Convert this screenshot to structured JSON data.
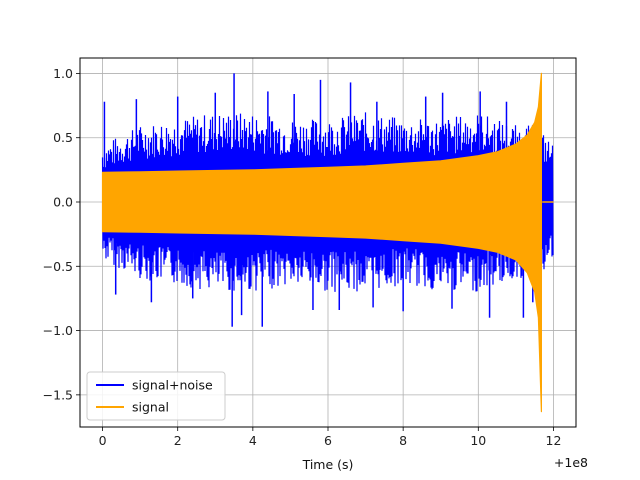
{
  "chart_data": {
    "type": "line",
    "title": "",
    "xlabel": "Time (s)",
    "ylabel": "",
    "x_offset_label": "+1e8",
    "x_ticks": [
      0,
      2,
      4,
      6,
      8,
      10,
      12
    ],
    "x_tick_labels": [
      "0",
      "2",
      "4",
      "6",
      "8",
      "10",
      "12"
    ],
    "y_ticks": [
      -1.5,
      -1.0,
      -0.5,
      0.0,
      0.5,
      1.0
    ],
    "y_tick_labels": [
      "−1.5",
      "−1.0",
      "−0.5",
      "0.0",
      "0.5",
      "1.0"
    ],
    "xlim": [
      -0.6,
      12.6
    ],
    "ylim": [
      -1.75,
      1.12
    ],
    "grid": true,
    "legend_position": "lower-left",
    "series": [
      {
        "name": "signal+noise",
        "color": "#0000ff",
        "x_range": [
          0,
          12.0
        ],
        "envelope": {
          "x": [
            0,
            1,
            2,
            3,
            4,
            5,
            6,
            7,
            8,
            9,
            10,
            11,
            11.5,
            11.7,
            12.0
          ],
          "upper": [
            0.45,
            0.6,
            0.65,
            0.7,
            0.7,
            0.65,
            0.65,
            0.7,
            0.65,
            0.65,
            0.7,
            0.6,
            0.6,
            0.55,
            0.45
          ],
          "lower": [
            -0.45,
            -0.6,
            -0.65,
            -0.7,
            -0.7,
            -0.65,
            -0.7,
            -0.7,
            -0.65,
            -0.7,
            -0.7,
            -0.6,
            -0.6,
            -0.55,
            -0.45
          ]
        },
        "peaks": [
          [
            0.05,
            0.78
          ],
          [
            0.35,
            -0.72
          ],
          [
            0.9,
            0.8
          ],
          [
            1.3,
            -0.78
          ],
          [
            2.0,
            0.82
          ],
          [
            2.4,
            -0.75
          ],
          [
            3.0,
            0.85
          ],
          [
            3.5,
            1.0
          ],
          [
            3.45,
            -0.97
          ],
          [
            3.7,
            -0.88
          ],
          [
            4.25,
            -0.97
          ],
          [
            4.4,
            0.86
          ],
          [
            5.1,
            0.84
          ],
          [
            5.6,
            -0.84
          ],
          [
            5.8,
            0.95
          ],
          [
            6.3,
            -0.84
          ],
          [
            6.6,
            0.93
          ],
          [
            7.2,
            -0.82
          ],
          [
            7.3,
            0.78
          ],
          [
            8.0,
            -0.85
          ],
          [
            8.6,
            0.82
          ],
          [
            9.05,
            0.85
          ],
          [
            9.3,
            -0.83
          ],
          [
            10.05,
            0.86
          ],
          [
            10.3,
            -0.9
          ],
          [
            10.75,
            0.78
          ],
          [
            11.2,
            -0.9
          ],
          [
            11.45,
            -0.78
          ]
        ]
      },
      {
        "name": "signal",
        "color": "#ffa500",
        "x_range": [
          0,
          11.7
        ],
        "envelope": {
          "x": [
            0,
            1,
            2,
            3,
            4,
            5,
            6,
            7,
            8,
            9,
            10,
            10.5,
            11,
            11.3,
            11.5,
            11.6,
            11.68
          ],
          "upper": [
            0.23,
            0.235,
            0.24,
            0.245,
            0.25,
            0.26,
            0.27,
            0.28,
            0.3,
            0.32,
            0.36,
            0.39,
            0.45,
            0.52,
            0.62,
            0.74,
            1.0
          ],
          "lower": [
            -0.23,
            -0.235,
            -0.24,
            -0.245,
            -0.25,
            -0.26,
            -0.27,
            -0.28,
            -0.3,
            -0.32,
            -0.36,
            -0.39,
            -0.45,
            -0.55,
            -0.7,
            -0.9,
            -1.63
          ]
        },
        "after": {
          "x": [
            11.7,
            12.0
          ],
          "y": [
            0.0,
            0.0
          ]
        }
      }
    ]
  }
}
